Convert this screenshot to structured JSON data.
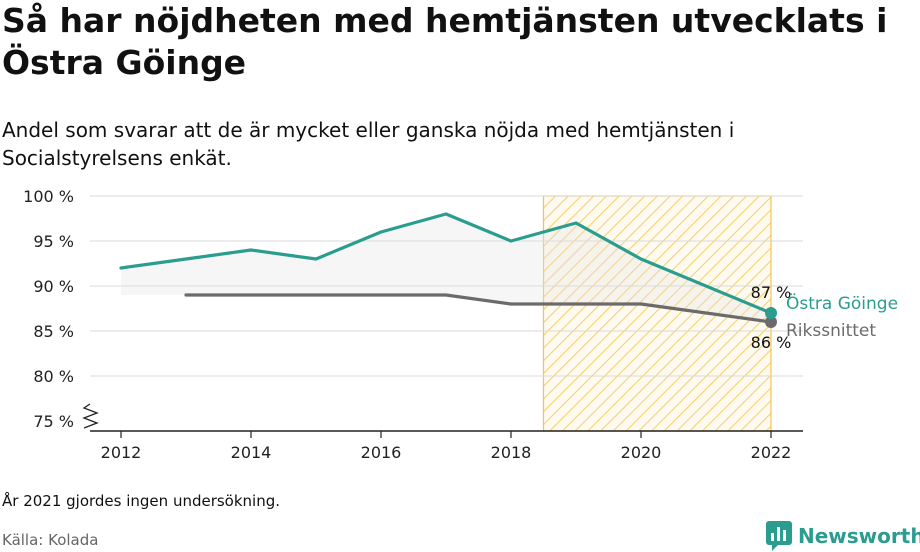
{
  "title": "Så har nöjdheten med hemtjänsten utvecklats i Östra Göinge",
  "subtitle": "Andel som svarar att de är mycket eller ganska nöjda med hemtjänsten i Socialstyrelsens enkät.",
  "note": "År 2021 gjordes ingen undersökning.",
  "source": "Källa: Kolada",
  "brand": {
    "name": "Newsworthy",
    "icon": "newsworthy-logo-icon"
  },
  "colors": {
    "municipality": "#2a9d8f",
    "national": "#6b6b6b",
    "highlight_fill": "#fdf0c4",
    "highlight_stroke": "#f2c447"
  },
  "chart_data": {
    "type": "line",
    "title": "Så har nöjdheten med hemtjänsten utvecklats i Östra Göinge",
    "xlabel": "",
    "ylabel": "",
    "xlim": [
      2012,
      2022
    ],
    "ylim": [
      75,
      100
    ],
    "x_ticks": [
      2012,
      2014,
      2016,
      2018,
      2020,
      2022
    ],
    "x_tick_labels": [
      "2012",
      "2014",
      "2016",
      "2018",
      "2020",
      "2022"
    ],
    "y_ticks": [
      75,
      80,
      85,
      90,
      95,
      100
    ],
    "y_tick_labels": [
      "75 %",
      "80 %",
      "85 %",
      "90 %",
      "95 %",
      "100 %"
    ],
    "y_axis_break": true,
    "grid": true,
    "highlight_region": {
      "x": [
        2018.5,
        2022
      ]
    },
    "series": [
      {
        "name": "Östra Göinge",
        "x": [
          2012,
          2013,
          2014,
          2015,
          2016,
          2017,
          2018,
          2019,
          2020,
          2022
        ],
        "values": [
          92,
          93,
          94,
          93,
          96,
          98,
          95,
          97,
          93,
          87
        ],
        "end_label": "87 %"
      },
      {
        "name": "Rikssnittet",
        "x": [
          2013,
          2014,
          2015,
          2016,
          2017,
          2018,
          2019,
          2020,
          2022
        ],
        "values": [
          89,
          89,
          89,
          89,
          89,
          88,
          88,
          88,
          86
        ],
        "end_label": "86 %"
      }
    ]
  }
}
